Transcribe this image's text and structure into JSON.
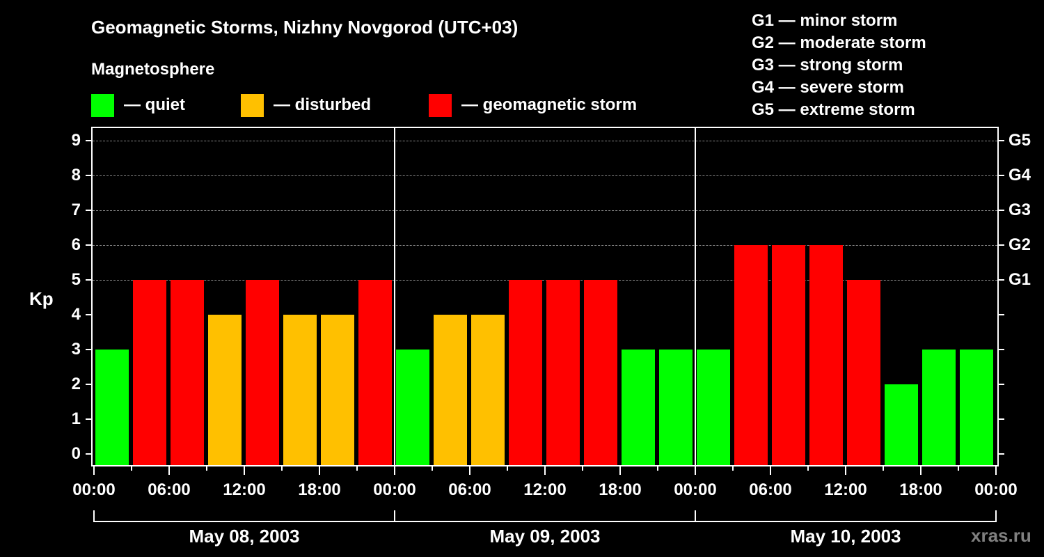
{
  "header": {
    "title": "Geomagnetic Storms, Nizhny Novgorod (UTC+03)",
    "subtitle": "Magnetosphere"
  },
  "legend": [
    {
      "label": "— quiet",
      "color": "#00ff00"
    },
    {
      "label": "— disturbed",
      "color": "#ffc000"
    },
    {
      "label": "— geomagnetic storm",
      "color": "#ff0000"
    }
  ],
  "g_scale_legend": [
    "G1 — minor storm",
    "G2 — moderate storm",
    "G3 — strong storm",
    "G4 — severe storm",
    "G5 — extreme storm"
  ],
  "axes": {
    "y_label": "Kp",
    "y_ticks": [
      "0",
      "1",
      "2",
      "3",
      "4",
      "5",
      "6",
      "7",
      "8",
      "9"
    ],
    "g_ticks": [
      {
        "kp": 5,
        "label": "G1"
      },
      {
        "kp": 6,
        "label": "G2"
      },
      {
        "kp": 7,
        "label": "G3"
      },
      {
        "kp": 8,
        "label": "G4"
      },
      {
        "kp": 9,
        "label": "G5"
      }
    ],
    "x_ticks": [
      "00:00",
      "06:00",
      "12:00",
      "18:00",
      "00:00",
      "06:00",
      "12:00",
      "18:00",
      "00:00",
      "06:00",
      "12:00",
      "18:00",
      "00:00"
    ],
    "dates": [
      "May 08, 2003",
      "May 09, 2003",
      "May 10, 2003"
    ]
  },
  "watermark": "xras.ru",
  "chart_data": {
    "type": "bar",
    "title": "Geomagnetic Storms, Nizhny Novgorod (UTC+03)",
    "xlabel": "",
    "ylabel": "Kp",
    "ylim": [
      0,
      9
    ],
    "grid": "dashed horizontal at Kp 5-9",
    "categories": [
      "May 08 00:00",
      "May 08 03:00",
      "May 08 06:00",
      "May 08 09:00",
      "May 08 12:00",
      "May 08 15:00",
      "May 08 18:00",
      "May 08 21:00",
      "May 09 00:00",
      "May 09 03:00",
      "May 09 06:00",
      "May 09 09:00",
      "May 09 12:00",
      "May 09 15:00",
      "May 09 18:00",
      "May 09 21:00",
      "May 10 00:00",
      "May 10 03:00",
      "May 10 06:00",
      "May 10 09:00",
      "May 10 12:00",
      "May 10 15:00",
      "May 10 18:00",
      "May 10 21:00"
    ],
    "values": [
      3,
      5,
      5,
      4,
      5,
      4,
      4,
      5,
      3,
      4,
      4,
      5,
      5,
      5,
      3,
      3,
      3,
      6,
      6,
      6,
      5,
      2,
      3,
      3
    ],
    "status": [
      "quiet",
      "storm",
      "storm",
      "disturbed",
      "storm",
      "disturbed",
      "disturbed",
      "storm",
      "quiet",
      "disturbed",
      "disturbed",
      "storm",
      "storm",
      "storm",
      "quiet",
      "quiet",
      "quiet",
      "storm",
      "storm",
      "storm",
      "storm",
      "quiet",
      "quiet",
      "quiet"
    ],
    "status_colors": {
      "quiet": "#00ff00",
      "disturbed": "#ffc000",
      "storm": "#ff0000"
    },
    "legend": [
      "quiet",
      "disturbed",
      "geomagnetic storm"
    ],
    "secondary_axis": {
      "G1": 5,
      "G2": 6,
      "G3": 7,
      "G4": 8,
      "G5": 9
    }
  }
}
